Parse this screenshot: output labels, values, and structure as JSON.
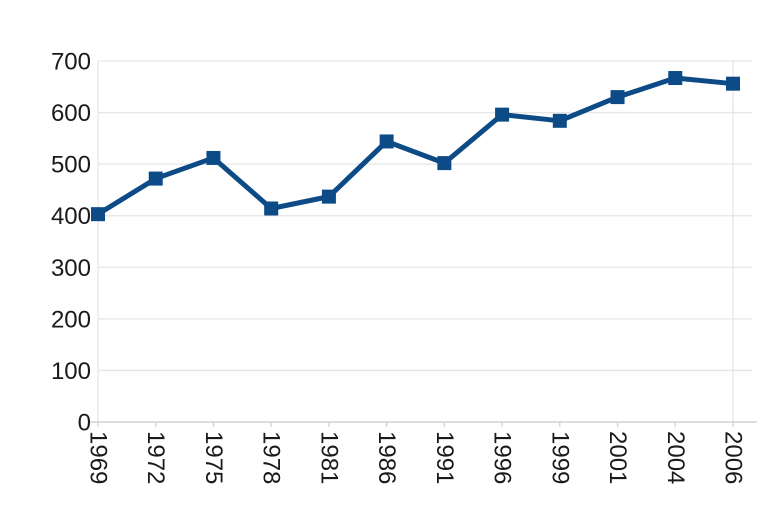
{
  "chart_data": {
    "type": "line",
    "title": "",
    "xlabel": "",
    "ylabel": "",
    "categories": [
      "1969",
      "1972",
      "1975",
      "1978",
      "1981",
      "1986",
      "1991",
      "1996",
      "1999",
      "2001",
      "2004",
      "2006"
    ],
    "values": [
      403,
      472,
      512,
      414,
      437,
      544,
      502,
      596,
      584,
      630,
      667,
      656
    ],
    "ylim": [
      0,
      700
    ],
    "y_ticks": [
      0,
      100,
      200,
      300,
      400,
      500,
      600,
      700
    ],
    "grid": "horizontal",
    "legend": "none",
    "x_tick_label_rotation_deg": 90,
    "marker": "square",
    "colors": {
      "series": "#0d4b87",
      "gridline": "#e6e6e6",
      "axis_line": "#d2d2d2",
      "tick_label": "#1a1a1a",
      "background": "#ffffff"
    }
  }
}
